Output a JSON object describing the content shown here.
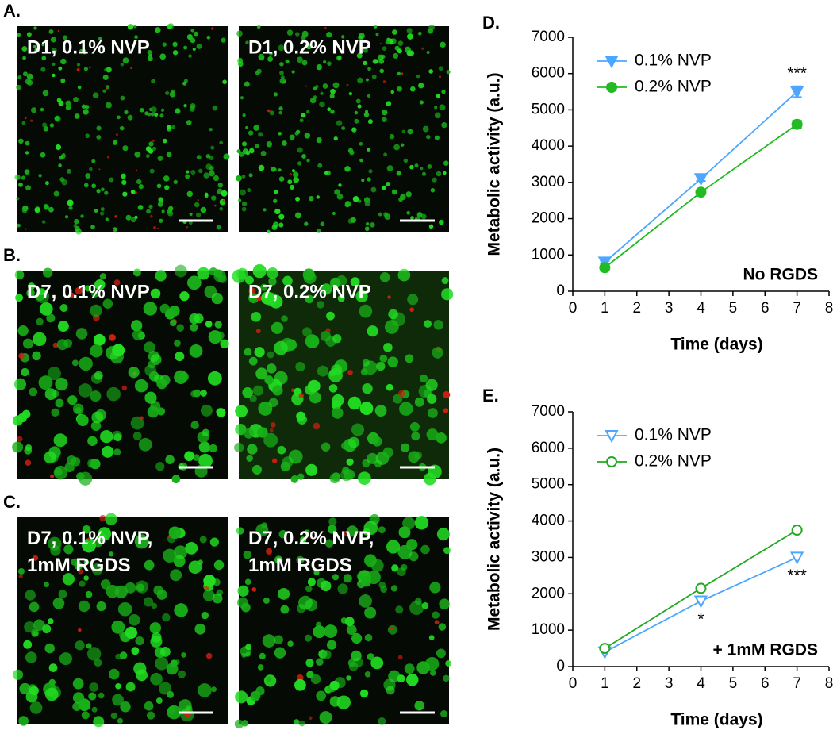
{
  "panels": [
    {
      "label": "A.",
      "images": [
        "D1, 0.1% NVP",
        "D1, 0.2% NVP"
      ]
    },
    {
      "label": "B.",
      "images": [
        "D7, 0.1% NVP",
        "D7, 0.2% NVP"
      ]
    },
    {
      "label": "C.",
      "images": [
        "D7, 0.1% NVP,\n1mM RGDS",
        "D7, 0.2% NVP,\n1mM RGDS"
      ]
    }
  ],
  "chart_data": [
    {
      "type": "line",
      "panel_label": "D.",
      "x_label": "Time (days)",
      "y_label": "Metabolic activity (a.u.)",
      "note": "No RGDS",
      "x": [
        1,
        4,
        7
      ],
      "significance": [
        null,
        null,
        "***"
      ],
      "significance_position": "above",
      "series": [
        {
          "name": "0.1% NVP",
          "color": "#4da6ff",
          "marker": "triangle-down",
          "filled": true,
          "values": [
            800,
            3100,
            5500
          ],
          "errors": [
            40,
            60,
            150
          ]
        },
        {
          "name": "0.2% NVP",
          "color": "#22bb22",
          "marker": "circle",
          "filled": true,
          "values": [
            650,
            2730,
            4600
          ],
          "errors": [
            40,
            60,
            100
          ]
        }
      ],
      "xlim": [
        0,
        8
      ],
      "xticks": [
        0,
        1,
        2,
        3,
        4,
        5,
        6,
        7,
        8
      ],
      "ylim": [
        0,
        7000
      ],
      "yticks": [
        0,
        1000,
        2000,
        3000,
        4000,
        5000,
        6000,
        7000
      ]
    },
    {
      "type": "line",
      "panel_label": "E.",
      "x_label": "Time (days)",
      "y_label": "Metabolic activity (a.u.)",
      "note": "+ 1mM RGDS",
      "x": [
        1,
        4,
        7
      ],
      "significance": [
        null,
        "*",
        "***"
      ],
      "significance_position": "below",
      "series": [
        {
          "name": "0.1% NVP",
          "color": "#4da6ff",
          "marker": "triangle-down",
          "filled": false,
          "values": [
            400,
            1800,
            3000
          ]
        },
        {
          "name": "0.2% NVP",
          "color": "#22aa22",
          "marker": "circle",
          "filled": false,
          "values": [
            500,
            2150,
            3750
          ]
        }
      ],
      "xlim": [
        0,
        8
      ],
      "xticks": [
        0,
        1,
        2,
        3,
        4,
        5,
        6,
        7,
        8
      ],
      "ylim": [
        0,
        7000
      ],
      "yticks": [
        0,
        1000,
        2000,
        3000,
        4000,
        5000,
        6000,
        7000
      ]
    }
  ]
}
